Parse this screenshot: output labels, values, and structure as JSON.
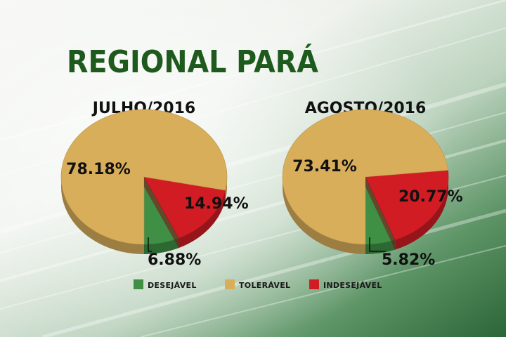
{
  "header": {
    "title": "REGIONAL PARÁ"
  },
  "colors": {
    "title": "#1e5a1e",
    "desejavel": "#3f8f45",
    "toleravel": "#d9ae5b",
    "indesejavel": "#d21c24",
    "background_light": "#f5f6f3",
    "background_green": "#2f6b3a"
  },
  "legend": [
    {
      "label": "DESEJÁVEL",
      "color": "#3f8f45"
    },
    {
      "label": "TOLERÁVEL",
      "color": "#d9ae5b"
    },
    {
      "label": "INDESEJÁVEL",
      "color": "#d21c24"
    }
  ],
  "chart_data": [
    {
      "type": "pie",
      "title": "JULHO/2016",
      "slices": [
        {
          "label": "DESEJÁVEL",
          "value": 6.88,
          "text": "6.88%"
        },
        {
          "label": "TOLERÁVEL",
          "value": 78.18,
          "text": "78.18%"
        },
        {
          "label": "INDESEJÁVEL",
          "value": 14.94,
          "text": "14.94%"
        }
      ]
    },
    {
      "type": "pie",
      "title": "AGOSTO/2016",
      "slices": [
        {
          "label": "DESEJÁVEL",
          "value": 5.82,
          "text": "5.82%"
        },
        {
          "label": "TOLERÁVEL",
          "value": 73.41,
          "text": "73.41%"
        },
        {
          "label": "INDESEJÁVEL",
          "value": 20.77,
          "text": "20.77%"
        }
      ]
    }
  ]
}
